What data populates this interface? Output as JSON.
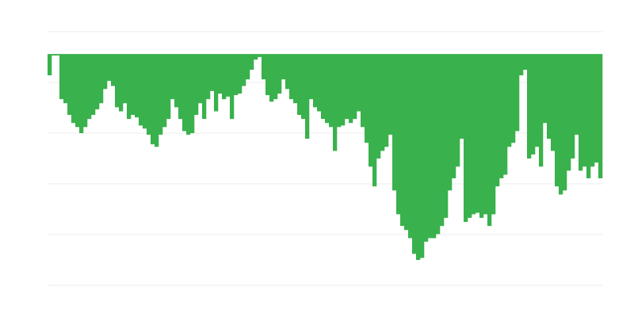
{
  "chart_data": {
    "type": "bar",
    "title": "",
    "xlabel": "",
    "ylabel": "",
    "baseline": 0,
    "ylim": [
      -45.6,
      4.4
    ],
    "gridlines": [
      4.4,
      -5.6,
      -15.6,
      -25.6,
      -35.6,
      -45.6
    ],
    "grid": true,
    "bar_color": "#39b14c",
    "grid_color": "#eeeeee",
    "values": [
      -4.2,
      -0.3,
      -0.3,
      -8.9,
      -9.7,
      -12.0,
      -13.6,
      -14.4,
      -15.6,
      -14.4,
      -12.8,
      -12.0,
      -10.9,
      -9.7,
      -6.9,
      -5.3,
      -6.3,
      -10.5,
      -11.3,
      -9.7,
      -12.8,
      -12.0,
      -12.5,
      -14.1,
      -14.7,
      -15.9,
      -17.8,
      -18.3,
      -15.9,
      -14.4,
      -12.8,
      -8.9,
      -10.5,
      -12.8,
      -15.2,
      -15.9,
      -15.6,
      -12.0,
      -9.7,
      -12.8,
      -8.9,
      -7.3,
      -11.3,
      -7.8,
      -8.9,
      -8.4,
      -12.8,
      -8.1,
      -7.8,
      -6.3,
      -5.0,
      -3.1,
      -1.1,
      -0.6,
      -5.0,
      -8.1,
      -9.4,
      -8.9,
      -7.8,
      -5.0,
      -6.9,
      -8.9,
      -9.7,
      -12.0,
      -12.8,
      -16.7,
      -8.9,
      -10.5,
      -11.3,
      -12.8,
      -13.6,
      -14.4,
      -19.1,
      -14.4,
      -14.1,
      -12.8,
      -13.6,
      -12.8,
      -11.3,
      -14.4,
      -17.5,
      -22.2,
      -26.1,
      -20.6,
      -19.1,
      -18.3,
      -15.9,
      -26.9,
      -31.6,
      -33.9,
      -34.7,
      -36.3,
      -39.4,
      -40.6,
      -40.2,
      -37.0,
      -36.3,
      -36.3,
      -35.5,
      -33.9,
      -32.3,
      -26.9,
      -24.5,
      -22.2,
      -16.7,
      -33.1,
      -32.3,
      -31.6,
      -31.3,
      -32.3,
      -31.6,
      -33.9,
      -31.6,
      -26.1,
      -24.5,
      -23.8,
      -18.3,
      -17.5,
      -15.2,
      -4.2,
      -3.1,
      -20.6,
      -19.8,
      -18.3,
      -22.2,
      -13.6,
      -16.7,
      -19.1,
      -26.1,
      -27.7,
      -26.9,
      -23.0,
      -20.6,
      -15.9,
      -23.0,
      -22.2,
      -24.5,
      -22.2,
      -21.4,
      -24.5
    ]
  }
}
